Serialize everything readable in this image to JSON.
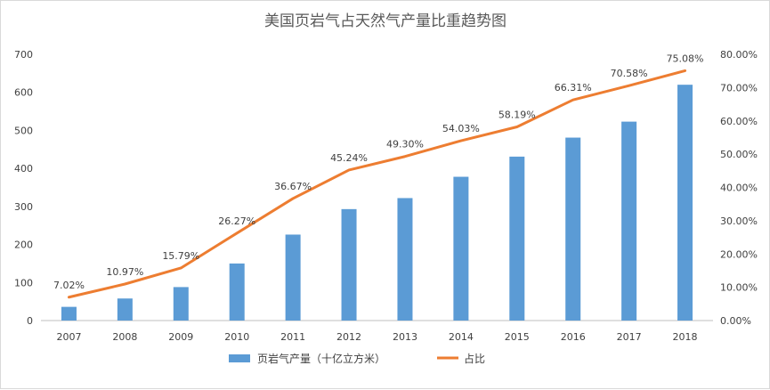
{
  "chart_data": {
    "type": "bar",
    "title": "美国页岩气占天然气产量比重趋势图",
    "categories": [
      "2007",
      "2008",
      "2009",
      "2010",
      "2011",
      "2012",
      "2013",
      "2014",
      "2015",
      "2016",
      "2017",
      "2018"
    ],
    "series": [
      {
        "name": "页岩气产量（十亿立方米）",
        "type": "bar",
        "axis": "left",
        "color": "#5b9bd5",
        "values": [
          36,
          58,
          88,
          150,
          226,
          293,
          322,
          378,
          431,
          481,
          523,
          620
        ]
      },
      {
        "name": "占比",
        "type": "line",
        "axis": "right",
        "color": "#ed7d31",
        "values": [
          7.02,
          10.97,
          15.79,
          26.27,
          36.67,
          45.24,
          49.3,
          54.03,
          58.19,
          66.31,
          70.58,
          75.08
        ],
        "labels": [
          "7.02%",
          "10.97%",
          "15.79%",
          "26.27%",
          "36.67%",
          "45.24%",
          "49.30%",
          "54.03%",
          "58.19%",
          "66.31%",
          "70.58%",
          "75.08%"
        ]
      }
    ],
    "y_left": {
      "ylim": [
        0,
        700
      ],
      "ticks": [
        "0",
        "100",
        "200",
        "300",
        "400",
        "500",
        "600",
        "700"
      ]
    },
    "y_right": {
      "ylim": [
        0,
        80
      ],
      "ticks": [
        "0.00%",
        "10.00%",
        "20.00%",
        "30.00%",
        "40.00%",
        "50.00%",
        "60.00%",
        "70.00%",
        "80.00%"
      ]
    },
    "grid": false,
    "legend_position": "bottom"
  }
}
